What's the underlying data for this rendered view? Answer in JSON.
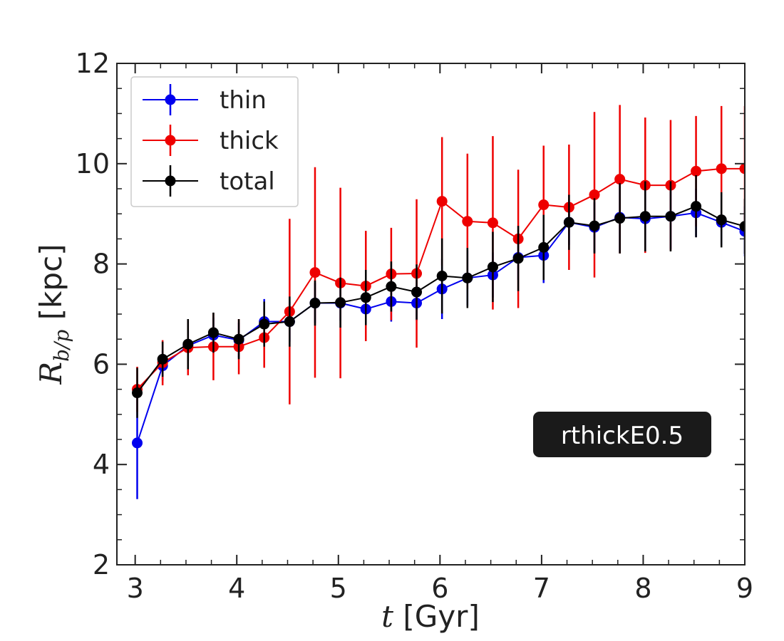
{
  "chart_data": {
    "type": "line",
    "title": "",
    "xlabel_var": "t",
    "xlabel_unit": " [Gyr]",
    "ylabel_var": "R",
    "ylabel_sub": "b/p",
    "ylabel_unit": " [kpc]",
    "xlim": [
      2.82,
      9.0
    ],
    "ylim": [
      2,
      12
    ],
    "xticks": [
      3,
      4,
      5,
      6,
      7,
      8,
      9
    ],
    "yticks": [
      2,
      4,
      6,
      8,
      10,
      12
    ],
    "grid": false,
    "legend_position": "top-left",
    "annotation": "rthickE0.5",
    "x": [
      3.02,
      3.27,
      3.52,
      3.77,
      4.02,
      4.27,
      4.52,
      4.77,
      5.02,
      5.27,
      5.52,
      5.77,
      6.02,
      6.27,
      6.52,
      6.77,
      7.02,
      7.27,
      7.52,
      7.77,
      8.02,
      8.27,
      8.52,
      8.77,
      9.0
    ],
    "series": [
      {
        "name": "thin",
        "color": "#0000ee",
        "values": [
          4.43,
          5.97,
          6.37,
          6.58,
          6.48,
          6.85,
          6.85,
          7.22,
          7.22,
          7.1,
          7.25,
          7.22,
          7.5,
          7.72,
          7.78,
          8.13,
          8.17,
          8.83,
          8.73,
          8.93,
          8.9,
          8.95,
          9.02,
          8.83,
          8.65
        ],
        "errors": [
          1.12,
          0.3,
          0.3,
          0.35,
          0.35,
          0.45,
          0.4,
          0.4,
          0.35,
          0.4,
          0.4,
          0.35,
          0.6,
          0.55,
          0.45,
          0.45,
          0.55,
          0.45,
          0.5,
          0.7,
          0.65,
          0.65,
          0.48,
          0.45,
          0.5
        ]
      },
      {
        "name": "thick",
        "color": "#ee0000",
        "values": [
          5.5,
          6.03,
          6.33,
          6.35,
          6.35,
          6.53,
          7.05,
          7.83,
          7.62,
          7.56,
          7.8,
          7.81,
          9.25,
          8.85,
          8.82,
          8.5,
          9.18,
          9.13,
          9.38,
          9.69,
          9.57,
          9.57,
          9.85,
          9.9,
          9.9
        ],
        "errors": [
          0.45,
          0.45,
          0.55,
          0.67,
          0.55,
          0.6,
          1.85,
          2.1,
          1.9,
          1.1,
          0.92,
          1.48,
          1.28,
          1.35,
          1.73,
          1.38,
          1.18,
          1.25,
          1.65,
          1.48,
          1.35,
          1.3,
          1.1,
          1.25,
          1.25
        ]
      },
      {
        "name": "total",
        "color": "#000000",
        "values": [
          5.43,
          6.1,
          6.4,
          6.63,
          6.5,
          6.8,
          6.85,
          7.22,
          7.23,
          7.33,
          7.55,
          7.44,
          7.76,
          7.72,
          7.94,
          8.11,
          8.33,
          8.83,
          8.76,
          8.91,
          8.95,
          8.95,
          9.15,
          8.88,
          8.75
        ],
        "errors": [
          0.5,
          0.35,
          0.5,
          0.4,
          0.4,
          0.45,
          0.5,
          0.45,
          0.5,
          0.55,
          0.5,
          0.55,
          0.75,
          0.6,
          0.7,
          0.65,
          0.65,
          0.55,
          0.55,
          0.7,
          0.7,
          0.7,
          0.62,
          0.55,
          0.55
        ]
      }
    ]
  }
}
